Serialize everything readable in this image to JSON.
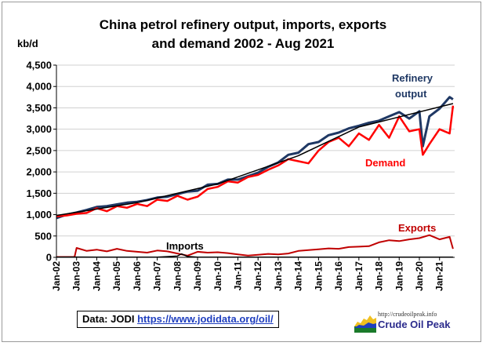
{
  "chart_data": {
    "type": "line",
    "title_line1": "China petrol refinery output, imports, exports",
    "title_line2": "and demand 2002 - Aug 2021",
    "ylabel": "kb/d",
    "ylim": [
      0,
      4500
    ],
    "yticks": [
      "0",
      "500",
      "1,000",
      "1,500",
      "2,000",
      "2,500",
      "3,000",
      "3,500",
      "4,000",
      "4,500"
    ],
    "xlim": [
      2002.0,
      2021.75
    ],
    "xticks": [
      "Jan-02",
      "Jan-03",
      "Jan-04",
      "Jan-05",
      "Jan-06",
      "Jan-07",
      "Jan-08",
      "Jan-09",
      "Jan-10",
      "Jan-11",
      "Jan-12",
      "Jan-13",
      "Jan-14",
      "Jan-15",
      "Jan-16",
      "Jan-17",
      "Jan-18",
      "Jan-19",
      "Jan-20",
      "Jan-21"
    ],
    "series": [
      {
        "name": "Refinery output",
        "color": "#1f3864",
        "points": [
          [
            2002.0,
            920
          ],
          [
            2002.5,
            1000
          ],
          [
            2003.0,
            1050
          ],
          [
            2003.5,
            1110
          ],
          [
            2004.0,
            1180
          ],
          [
            2004.5,
            1200
          ],
          [
            2005.0,
            1240
          ],
          [
            2005.5,
            1280
          ],
          [
            2006.0,
            1300
          ],
          [
            2006.5,
            1340
          ],
          [
            2007.0,
            1400
          ],
          [
            2007.5,
            1420
          ],
          [
            2008.0,
            1480
          ],
          [
            2008.5,
            1540
          ],
          [
            2009.0,
            1560
          ],
          [
            2009.5,
            1700
          ],
          [
            2010.0,
            1720
          ],
          [
            2010.5,
            1820
          ],
          [
            2011.0,
            1820
          ],
          [
            2011.5,
            1900
          ],
          [
            2012.0,
            1980
          ],
          [
            2012.5,
            2120
          ],
          [
            2013.0,
            2220
          ],
          [
            2013.5,
            2400
          ],
          [
            2014.0,
            2450
          ],
          [
            2014.5,
            2650
          ],
          [
            2015.0,
            2700
          ],
          [
            2015.5,
            2860
          ],
          [
            2016.0,
            2920
          ],
          [
            2016.5,
            3020
          ],
          [
            2017.0,
            3080
          ],
          [
            2017.5,
            3150
          ],
          [
            2018.0,
            3200
          ],
          [
            2018.5,
            3300
          ],
          [
            2019.0,
            3400
          ],
          [
            2019.5,
            3250
          ],
          [
            2020.0,
            3420
          ],
          [
            2020.17,
            2600
          ],
          [
            2020.5,
            3300
          ],
          [
            2021.0,
            3480
          ],
          [
            2021.5,
            3750
          ],
          [
            2021.67,
            3700
          ]
        ]
      },
      {
        "name": "Demand",
        "color": "#ff0000",
        "points": [
          [
            2002.0,
            960
          ],
          [
            2002.5,
            980
          ],
          [
            2003.0,
            1020
          ],
          [
            2003.5,
            1040
          ],
          [
            2004.0,
            1150
          ],
          [
            2004.5,
            1080
          ],
          [
            2005.0,
            1200
          ],
          [
            2005.5,
            1160
          ],
          [
            2006.0,
            1250
          ],
          [
            2006.5,
            1200
          ],
          [
            2007.0,
            1350
          ],
          [
            2007.5,
            1320
          ],
          [
            2008.0,
            1440
          ],
          [
            2008.5,
            1350
          ],
          [
            2009.0,
            1420
          ],
          [
            2009.5,
            1600
          ],
          [
            2010.0,
            1650
          ],
          [
            2010.5,
            1780
          ],
          [
            2011.0,
            1750
          ],
          [
            2011.5,
            1880
          ],
          [
            2012.0,
            1930
          ],
          [
            2012.5,
            2050
          ],
          [
            2013.0,
            2150
          ],
          [
            2013.5,
            2300
          ],
          [
            2014.0,
            2250
          ],
          [
            2014.5,
            2200
          ],
          [
            2015.0,
            2500
          ],
          [
            2015.5,
            2700
          ],
          [
            2016.0,
            2800
          ],
          [
            2016.5,
            2600
          ],
          [
            2017.0,
            2900
          ],
          [
            2017.5,
            2750
          ],
          [
            2018.0,
            3100
          ],
          [
            2018.5,
            2800
          ],
          [
            2019.0,
            3300
          ],
          [
            2019.5,
            2950
          ],
          [
            2020.0,
            3000
          ],
          [
            2020.17,
            2400
          ],
          [
            2020.5,
            2650
          ],
          [
            2021.0,
            3000
          ],
          [
            2021.5,
            2900
          ],
          [
            2021.67,
            3550
          ]
        ]
      },
      {
        "name": "Exports",
        "color": "#c00000",
        "points": [
          [
            2002.0,
            10
          ],
          [
            2002.5,
            10
          ],
          [
            2002.9,
            10
          ],
          [
            2003.0,
            220
          ],
          [
            2003.5,
            150
          ],
          [
            2004.0,
            180
          ],
          [
            2004.5,
            140
          ],
          [
            2005.0,
            200
          ],
          [
            2005.5,
            150
          ],
          [
            2006.0,
            130
          ],
          [
            2006.5,
            110
          ],
          [
            2007.0,
            160
          ],
          [
            2007.5,
            140
          ],
          [
            2008.0,
            90
          ],
          [
            2008.5,
            40
          ],
          [
            2009.0,
            130
          ],
          [
            2009.5,
            110
          ],
          [
            2010.0,
            120
          ],
          [
            2010.5,
            100
          ],
          [
            2011.0,
            70
          ],
          [
            2011.5,
            40
          ],
          [
            2012.0,
            60
          ],
          [
            2012.5,
            80
          ],
          [
            2013.0,
            70
          ],
          [
            2013.5,
            90
          ],
          [
            2014.0,
            150
          ],
          [
            2014.5,
            170
          ],
          [
            2015.0,
            190
          ],
          [
            2015.5,
            210
          ],
          [
            2016.0,
            200
          ],
          [
            2016.5,
            240
          ],
          [
            2017.0,
            250
          ],
          [
            2017.5,
            260
          ],
          [
            2018.0,
            350
          ],
          [
            2018.5,
            400
          ],
          [
            2019.0,
            380
          ],
          [
            2019.5,
            420
          ],
          [
            2020.0,
            450
          ],
          [
            2020.5,
            520
          ],
          [
            2021.0,
            420
          ],
          [
            2021.5,
            480
          ],
          [
            2021.67,
            200
          ]
        ]
      },
      {
        "name": "Imports",
        "color": "#000000",
        "points": [
          [
            2002.0,
            5
          ],
          [
            2003.0,
            8
          ],
          [
            2004.0,
            5
          ],
          [
            2005.0,
            5
          ],
          [
            2006.0,
            5
          ],
          [
            2007.0,
            5
          ],
          [
            2008.0,
            30
          ],
          [
            2008.2,
            80
          ],
          [
            2008.5,
            20
          ],
          [
            2009.0,
            5
          ],
          [
            2010.0,
            5
          ],
          [
            2011.0,
            5
          ],
          [
            2012.0,
            5
          ],
          [
            2013.0,
            5
          ],
          [
            2014.0,
            5
          ],
          [
            2015.0,
            5
          ],
          [
            2016.0,
            5
          ],
          [
            2017.0,
            5
          ],
          [
            2018.0,
            5
          ],
          [
            2019.0,
            5
          ],
          [
            2020.0,
            5
          ],
          [
            2021.0,
            5
          ],
          [
            2021.67,
            5
          ]
        ]
      },
      {
        "color": "#000000",
        "points": [
          [
            2002.0,
            980
          ],
          [
            2006.0,
            1280
          ],
          [
            2010.0,
            1720
          ],
          [
            2014.0,
            2380
          ],
          [
            2017.0,
            3050
          ],
          [
            2021.67,
            3600
          ]
        ]
      }
    ],
    "labels": {
      "refinery_line1": "Refinery",
      "refinery_line2": "output",
      "demand": "Demand",
      "exports": "Exports",
      "imports": "Imports"
    }
  },
  "source": {
    "prefix": "Data: JODI",
    "link": "https://www.jodidata.org/oil/"
  },
  "logo": {
    "url": "http://crudeoilpeak.info",
    "name": "Crude Oil Peak"
  }
}
